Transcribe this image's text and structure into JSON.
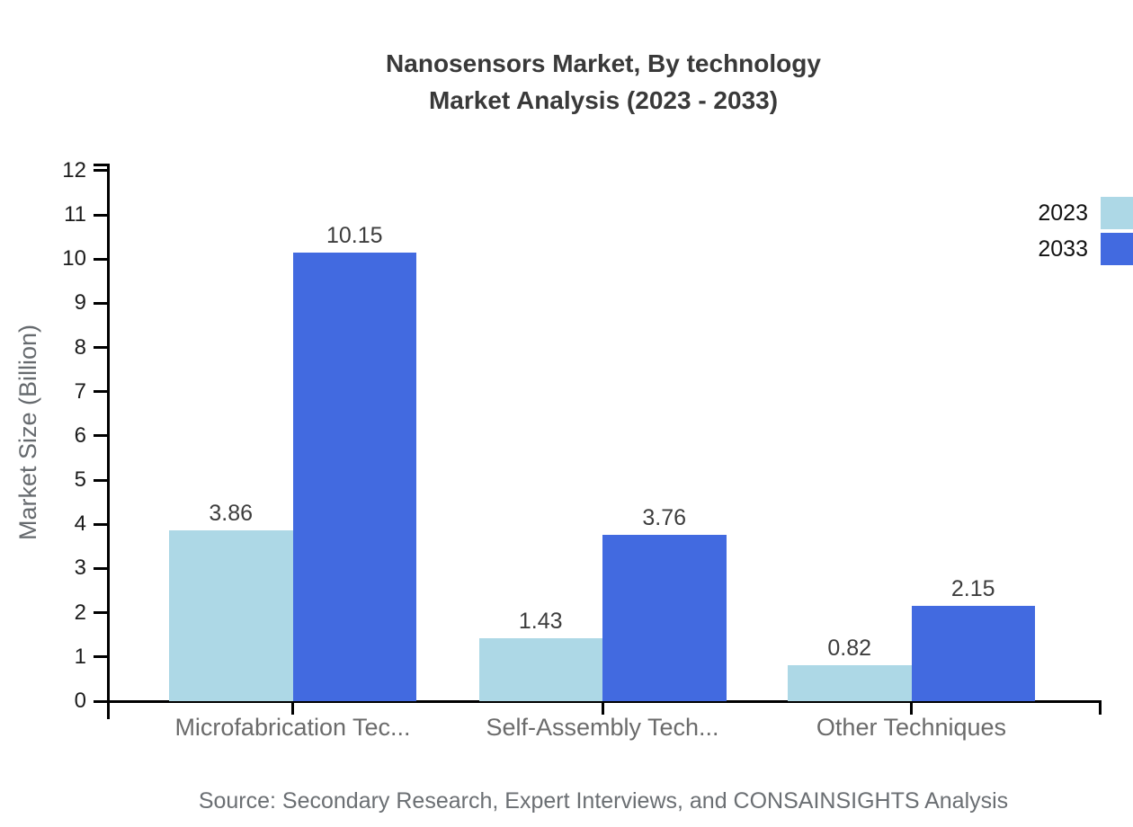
{
  "title": {
    "line1": "Nanosensors Market, By technology",
    "line2": "Market Analysis (2023 - 2033)"
  },
  "source": "Source: Secondary Research, Expert Interviews, and CONSAINSIGHTS Analysis",
  "chart_data": {
    "type": "bar",
    "title": "Nanosensors Market, By technology Market Analysis (2023 - 2033)",
    "categories": [
      "Microfabrication Tec...",
      "Self-Assembly Tech...",
      "Other Techniques"
    ],
    "series": [
      {
        "name": "2023",
        "color": "#ADD8E6",
        "values": [
          3.86,
          1.43,
          0.82
        ]
      },
      {
        "name": "2033",
        "color": "#426AE0",
        "values": [
          10.15,
          3.76,
          2.15
        ]
      }
    ],
    "xlabel": "",
    "ylabel": "Market Size (Billion)",
    "ylim": [
      0,
      12
    ],
    "ytick_step": 1,
    "yticks": [
      0,
      1,
      2,
      3,
      4,
      5,
      6,
      7,
      8,
      9,
      10,
      11,
      12
    ],
    "grid": false,
    "legend_position": "top-right",
    "axis_color": "#000000",
    "value_label_color": "#3d3d3d"
  }
}
